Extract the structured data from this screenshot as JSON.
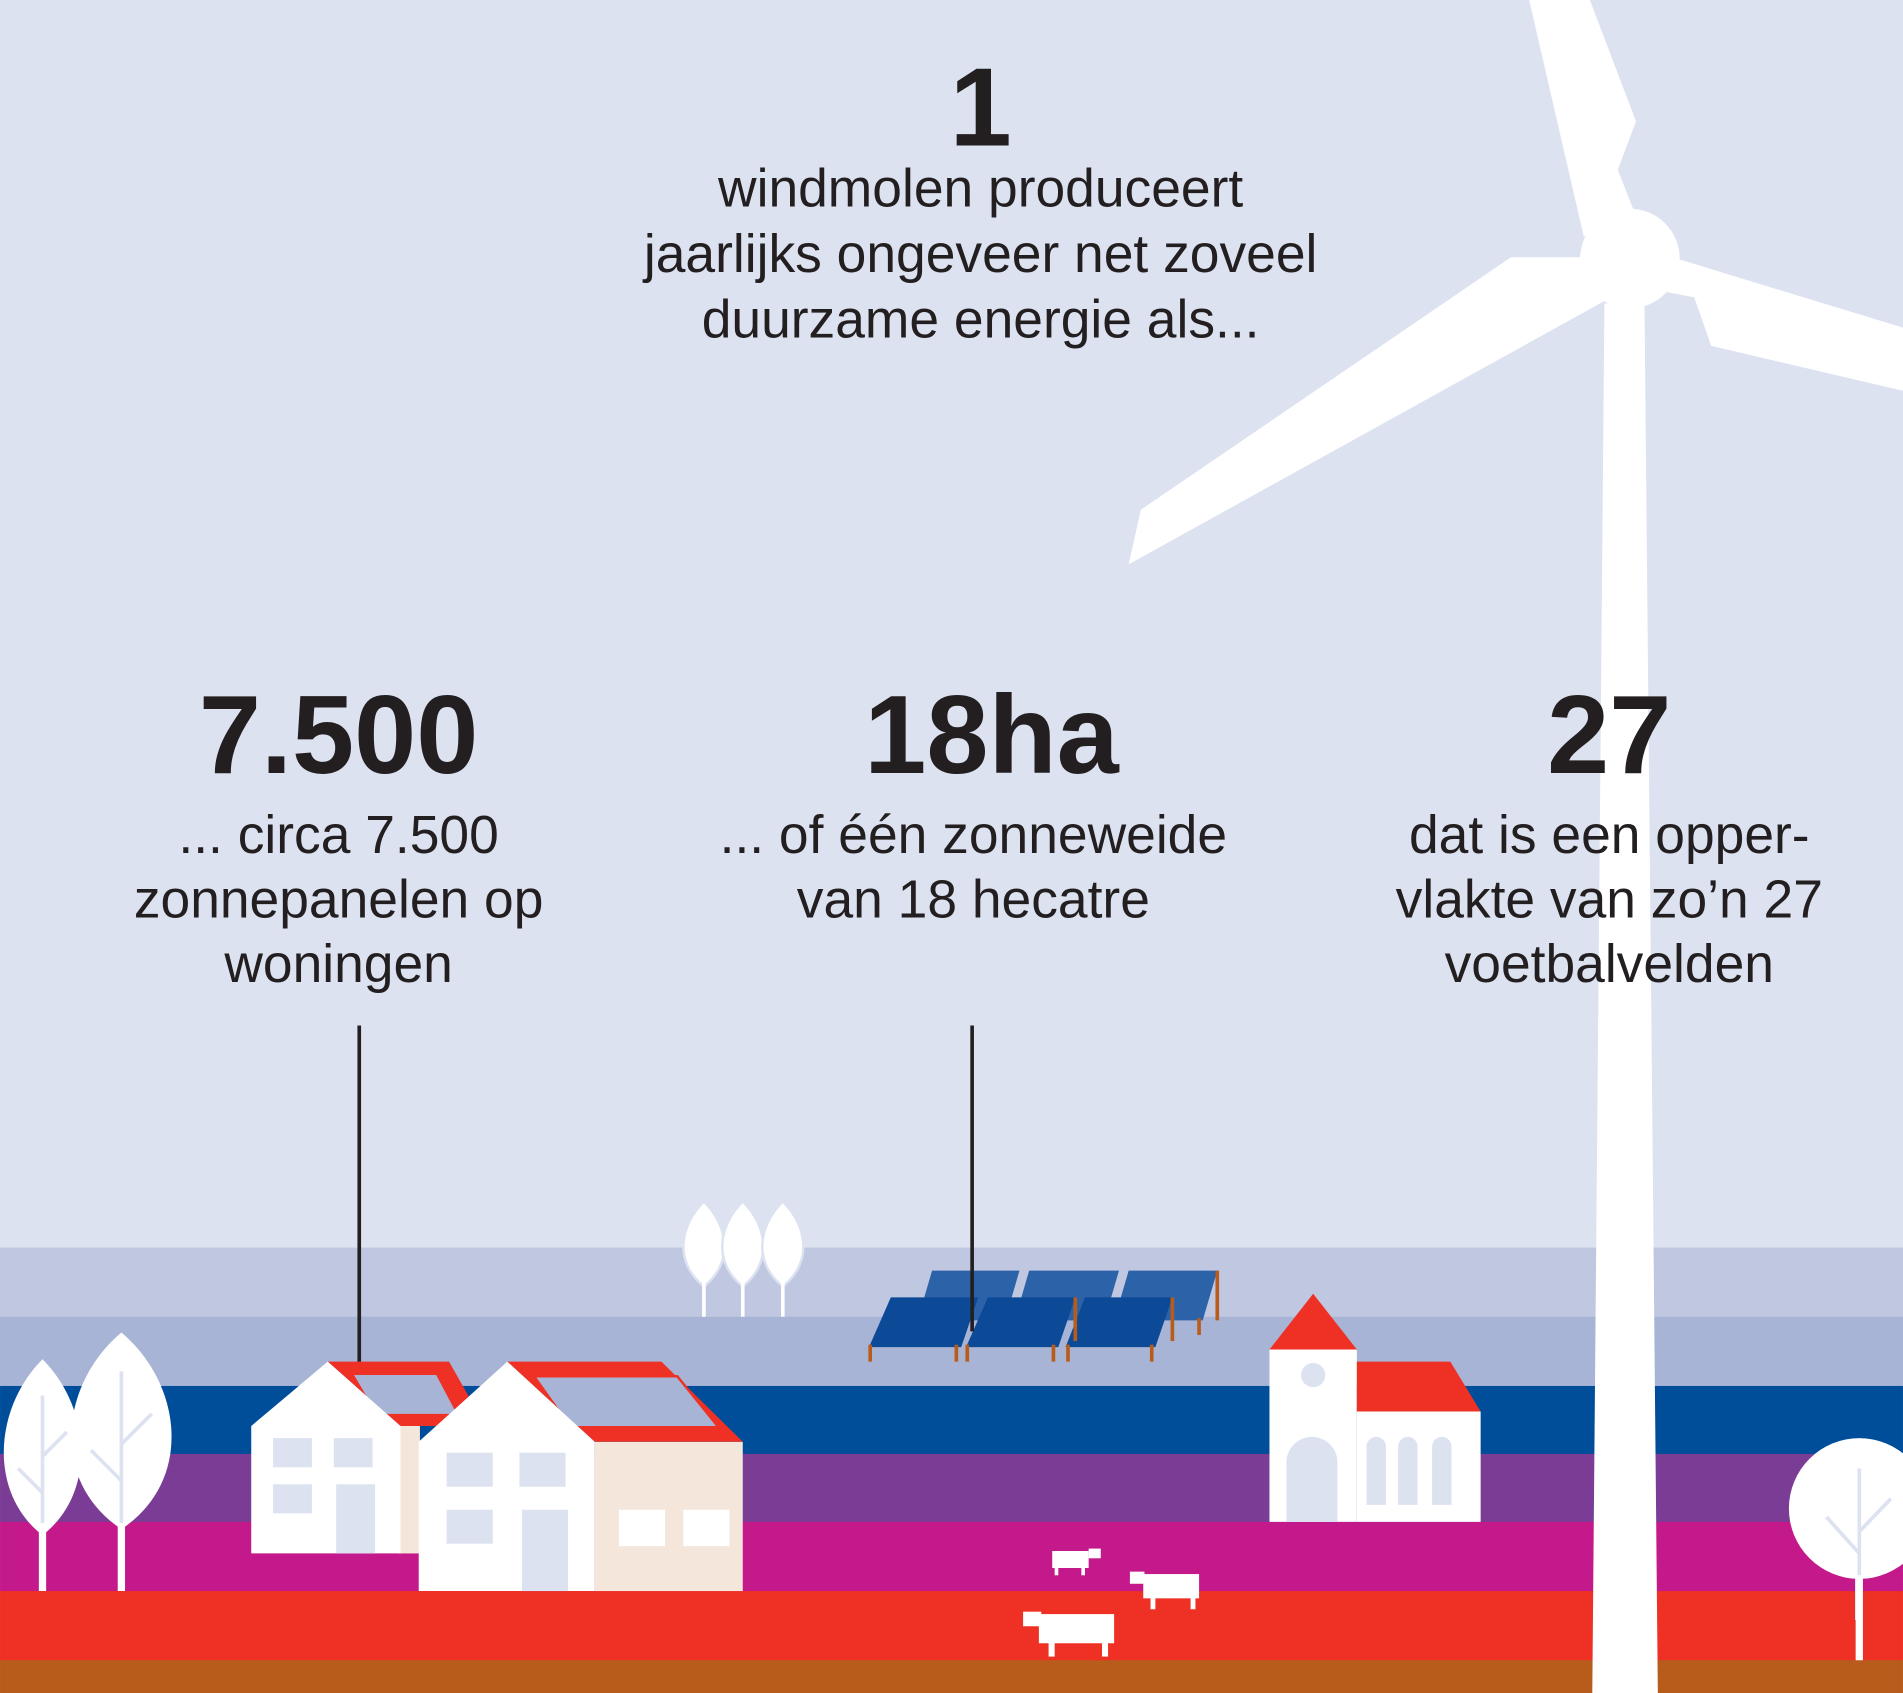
{
  "header": {
    "number": "1",
    "lines": [
      "windmolen produceert",
      "jaarlijks ongeveer net zoveel",
      "duurzame energie als..."
    ]
  },
  "stats": [
    {
      "number": "7.500",
      "lines": [
        "... circa 7.500",
        "zonnepanelen op",
        "woningen"
      ]
    },
    {
      "number": "18ha",
      "lines": [
        "... of één zonneweide",
        "van 18 hecatre"
      ]
    },
    {
      "number": "27",
      "lines": [
        "dat is een opper-",
        "vlakte van zo’n 27",
        "voetbalvelden"
      ]
    }
  ]
}
